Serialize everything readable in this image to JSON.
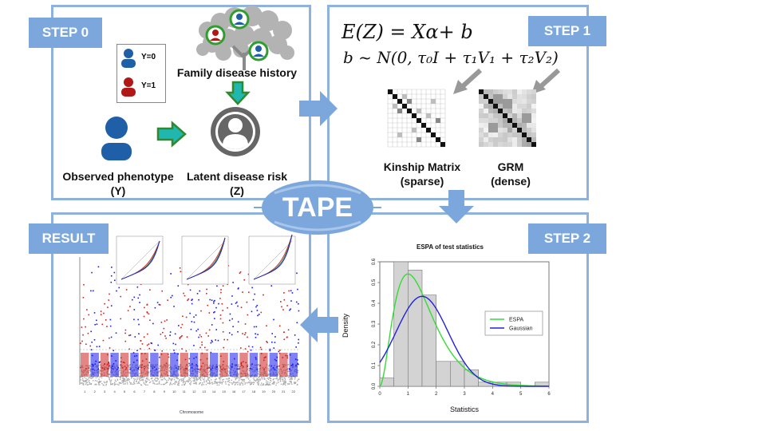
{
  "steps": {
    "step0": "STEP 0",
    "step1": "STEP 1",
    "step2": "STEP 2",
    "result": "RESULT"
  },
  "center_label": "TAPE",
  "step0": {
    "legend_y0": "Y=0",
    "legend_y1": "Y=1",
    "family_history": "Family disease history",
    "observed_line1": "Observed phenotype",
    "observed_line2": "(Y)",
    "latent_line1": "Latent disease risk",
    "latent_line2": "(Z)",
    "colors": {
      "blue": "#1f5fa8",
      "red": "#b01818",
      "green": "#2f9e2f",
      "gray": "#666666"
    }
  },
  "step1": {
    "equation1": "E(Z) = Xα+ b",
    "equation2": "b ~ N(0, τ₀I + τ₁V₁ + τ₂V₂)",
    "kinship_line1": "Kinship Matrix",
    "kinship_line2": "(sparse)",
    "grm_line1": "GRM",
    "grm_line2": "(dense)"
  },
  "step2": {
    "chart_data": {
      "type": "bar",
      "title": "ESPA of test statistics",
      "xlabel": "Statistics",
      "ylabel": "Density",
      "xlim": [
        0,
        6
      ],
      "ylim": [
        0,
        0.6
      ],
      "xticks": [
        "0",
        "1",
        "2",
        "3",
        "4",
        "5",
        "6"
      ],
      "yticks": [
        "0.0",
        "0.1",
        "0.2",
        "0.3",
        "0.4",
        "0.5",
        "0.6"
      ],
      "bins": [
        {
          "x0": 0.0,
          "x1": 0.5,
          "density": 0.04
        },
        {
          "x0": 0.5,
          "x1": 1.0,
          "density": 0.6
        },
        {
          "x0": 1.0,
          "x1": 1.5,
          "density": 0.56
        },
        {
          "x0": 1.5,
          "x1": 2.0,
          "density": 0.44
        },
        {
          "x0": 2.0,
          "x1": 2.5,
          "density": 0.12
        },
        {
          "x0": 2.5,
          "x1": 3.0,
          "density": 0.12
        },
        {
          "x0": 3.0,
          "x1": 3.5,
          "density": 0.08
        },
        {
          "x0": 3.5,
          "x1": 4.0,
          "density": 0.02
        },
        {
          "x0": 4.0,
          "x1": 4.5,
          "density": 0.02
        },
        {
          "x0": 4.5,
          "x1": 5.0,
          "density": 0.02
        },
        {
          "x0": 5.0,
          "x1": 5.5,
          "density": 0.0
        },
        {
          "x0": 5.5,
          "x1": 6.0,
          "density": 0.02
        }
      ],
      "series": [
        {
          "name": "ESPA",
          "color": "#33dd33"
        },
        {
          "name": "Gaussian",
          "color": "#2222dd"
        }
      ],
      "legend_position": "right"
    }
  },
  "result": {
    "xlabel": "Chromosome",
    "chromosomes": [
      "1",
      "2",
      "3",
      "4",
      "5",
      "6",
      "7",
      "8",
      "9",
      "10",
      "11",
      "12",
      "13",
      "14",
      "15",
      "16",
      "17",
      "18",
      "19",
      "20",
      "21",
      "22"
    ],
    "colors": {
      "odd": "#cc2222",
      "even": "#1a1aee",
      "background": "#aaaaaa",
      "threshold": "#999999"
    }
  }
}
